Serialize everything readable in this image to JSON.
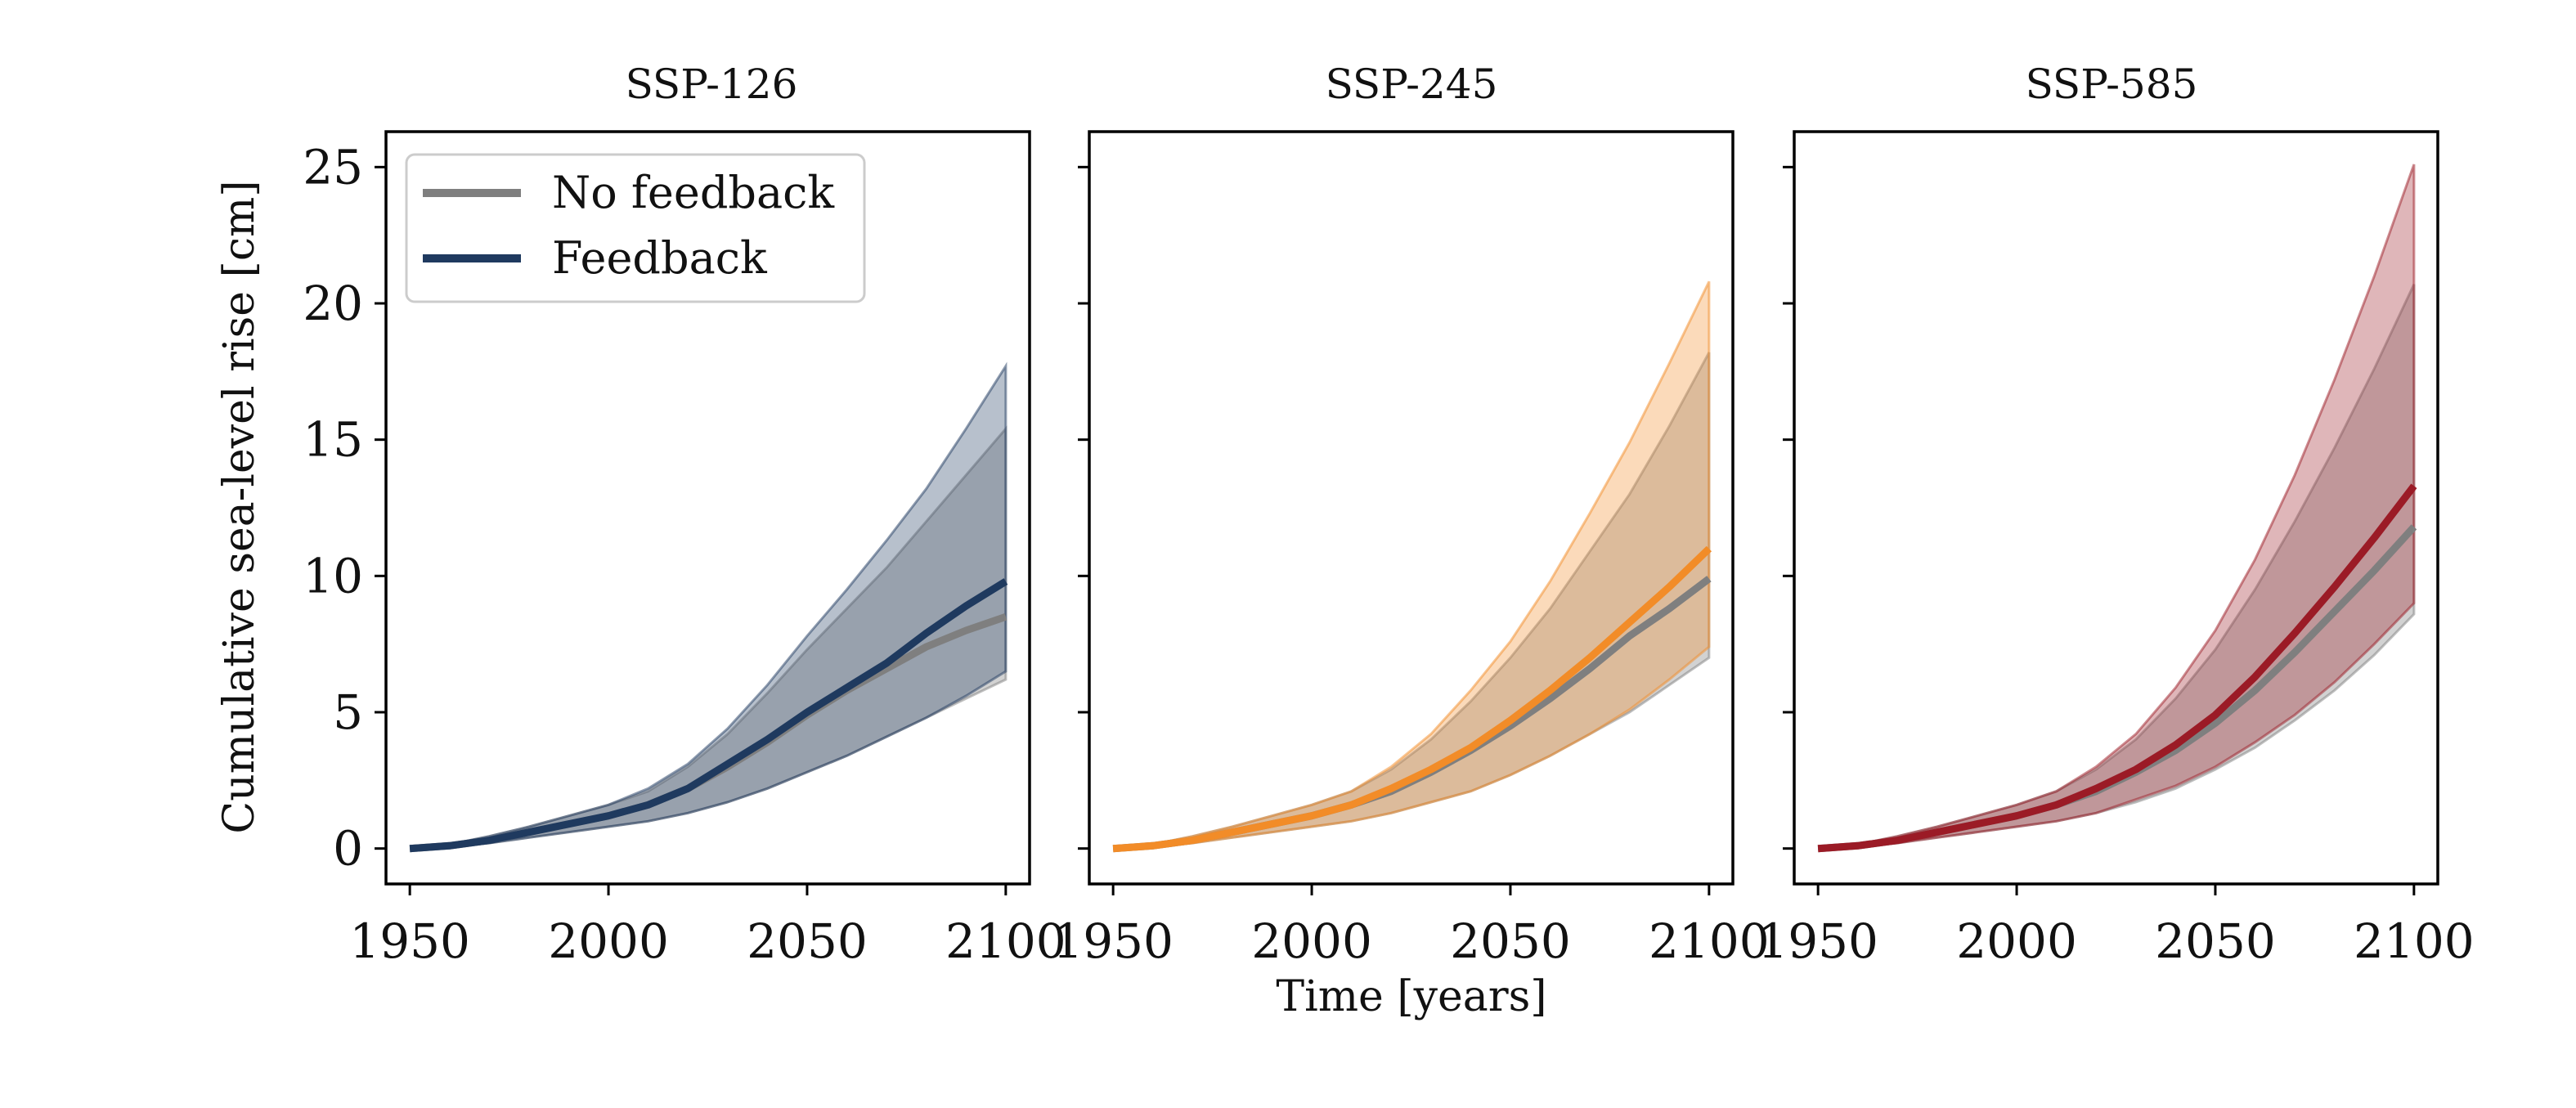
{
  "chart_data": {
    "type": "line",
    "xlabel": "Time [years]",
    "ylabel": "Cumulative sea-level rise [cm]",
    "xlim": [
      1944,
      2106
    ],
    "ylim": [
      -1.3,
      26.3
    ],
    "xticks": [
      1950,
      2000,
      2050,
      2100
    ],
    "yticks": [
      0,
      5,
      10,
      15,
      20,
      25
    ],
    "legend": {
      "placement": "top-left",
      "entries": [
        {
          "label": "No feedback",
          "color": "#7f7f7f"
        },
        {
          "label": "Feedback",
          "color": "#1f3a5f"
        }
      ]
    },
    "panels": [
      {
        "title": "SSP-126",
        "feedback_color": "#1f3a5f",
        "nofeedback_color": "#7f7f7f",
        "x": [
          1950,
          1960,
          1970,
          1980,
          1990,
          2000,
          2010,
          2020,
          2030,
          2040,
          2050,
          2060,
          2070,
          2080,
          2090,
          2100
        ],
        "series": [
          {
            "name": "No feedback",
            "values": [
              0,
              0.1,
              0.3,
              0.6,
              0.9,
              1.2,
              1.6,
              2.2,
              3.0,
              3.9,
              4.9,
              5.8,
              6.6,
              7.4,
              8.0,
              8.5
            ]
          },
          {
            "name": "Feedback",
            "values": [
              0,
              0.1,
              0.3,
              0.6,
              0.9,
              1.2,
              1.6,
              2.2,
              3.1,
              4.0,
              5.0,
              5.9,
              6.8,
              7.9,
              8.9,
              9.8
            ]
          }
        ],
        "bands": [
          {
            "name": "No feedback",
            "lower": [
              0,
              0.05,
              0.2,
              0.4,
              0.6,
              0.8,
              1.0,
              1.3,
              1.7,
              2.2,
              2.8,
              3.4,
              4.1,
              4.8,
              5.5,
              6.2
            ],
            "upper": [
              0,
              0.15,
              0.45,
              0.8,
              1.2,
              1.6,
              2.1,
              3.0,
              4.2,
              5.7,
              7.3,
              8.8,
              10.3,
              12.0,
              13.7,
              15.4
            ]
          },
          {
            "name": "Feedback",
            "lower": [
              0,
              0.05,
              0.2,
              0.4,
              0.6,
              0.8,
              1.0,
              1.3,
              1.7,
              2.2,
              2.8,
              3.4,
              4.1,
              4.8,
              5.6,
              6.5
            ],
            "upper": [
              0,
              0.15,
              0.45,
              0.8,
              1.2,
              1.6,
              2.2,
              3.1,
              4.4,
              6.0,
              7.8,
              9.5,
              11.3,
              13.2,
              15.4,
              17.7
            ]
          }
        ]
      },
      {
        "title": "SSP-245",
        "feedback_color": "#f28c28",
        "nofeedback_color": "#7f7f7f",
        "x": [
          1950,
          1960,
          1970,
          1980,
          1990,
          2000,
          2010,
          2020,
          2030,
          2040,
          2050,
          2060,
          2070,
          2080,
          2090,
          2100
        ],
        "series": [
          {
            "name": "No feedback",
            "values": [
              0,
              0.1,
              0.3,
              0.6,
              0.9,
              1.2,
              1.6,
              2.1,
              2.8,
              3.6,
              4.5,
              5.5,
              6.6,
              7.8,
              8.8,
              9.9
            ]
          },
          {
            "name": "Feedback",
            "values": [
              0,
              0.1,
              0.3,
              0.6,
              0.9,
              1.2,
              1.6,
              2.2,
              2.9,
              3.7,
              4.7,
              5.8,
              7.0,
              8.3,
              9.6,
              11.0
            ]
          }
        ],
        "bands": [
          {
            "name": "No feedback",
            "lower": [
              0,
              0.05,
              0.2,
              0.4,
              0.6,
              0.8,
              1.0,
              1.3,
              1.7,
              2.1,
              2.7,
              3.4,
              4.2,
              5.0,
              6.0,
              7.0
            ],
            "upper": [
              0,
              0.15,
              0.45,
              0.8,
              1.2,
              1.6,
              2.1,
              2.9,
              4.0,
              5.4,
              7.0,
              8.8,
              10.9,
              13.0,
              15.5,
              18.2
            ]
          },
          {
            "name": "Feedback",
            "lower": [
              0,
              0.05,
              0.2,
              0.4,
              0.6,
              0.8,
              1.0,
              1.3,
              1.7,
              2.1,
              2.7,
              3.4,
              4.2,
              5.1,
              6.2,
              7.4
            ],
            "upper": [
              0,
              0.15,
              0.45,
              0.8,
              1.2,
              1.6,
              2.1,
              3.0,
              4.2,
              5.8,
              7.6,
              9.8,
              12.3,
              14.9,
              17.8,
              20.8
            ]
          }
        ]
      },
      {
        "title": "SSP-585",
        "feedback_color": "#9b1b26",
        "nofeedback_color": "#7f7f7f",
        "x": [
          1950,
          1960,
          1970,
          1980,
          1990,
          2000,
          2010,
          2020,
          2030,
          2040,
          2050,
          2060,
          2070,
          2080,
          2090,
          2100
        ],
        "series": [
          {
            "name": "No feedback",
            "values": [
              0,
              0.1,
              0.3,
              0.6,
              0.9,
              1.2,
              1.6,
              2.1,
              2.8,
              3.6,
              4.6,
              5.8,
              7.2,
              8.7,
              10.2,
              11.8
            ]
          },
          {
            "name": "Feedback",
            "values": [
              0,
              0.1,
              0.3,
              0.6,
              0.9,
              1.2,
              1.6,
              2.2,
              2.9,
              3.8,
              4.9,
              6.3,
              7.9,
              9.6,
              11.4,
              13.3
            ]
          }
        ],
        "bands": [
          {
            "name": "No feedback",
            "lower": [
              0,
              0.05,
              0.2,
              0.4,
              0.6,
              0.8,
              1.0,
              1.3,
              1.7,
              2.2,
              2.9,
              3.7,
              4.7,
              5.8,
              7.1,
              8.6
            ],
            "upper": [
              0,
              0.15,
              0.45,
              0.8,
              1.2,
              1.6,
              2.1,
              2.9,
              4.0,
              5.5,
              7.3,
              9.5,
              12.0,
              14.7,
              17.6,
              20.7
            ]
          },
          {
            "name": "Feedback",
            "lower": [
              0,
              0.05,
              0.2,
              0.4,
              0.6,
              0.8,
              1.0,
              1.3,
              1.8,
              2.3,
              3.0,
              3.9,
              4.9,
              6.1,
              7.5,
              9.0
            ],
            "upper": [
              0,
              0.15,
              0.45,
              0.8,
              1.2,
              1.6,
              2.1,
              3.0,
              4.2,
              5.9,
              8.0,
              10.6,
              13.7,
              17.2,
              21.0,
              25.1
            ]
          }
        ]
      }
    ]
  }
}
